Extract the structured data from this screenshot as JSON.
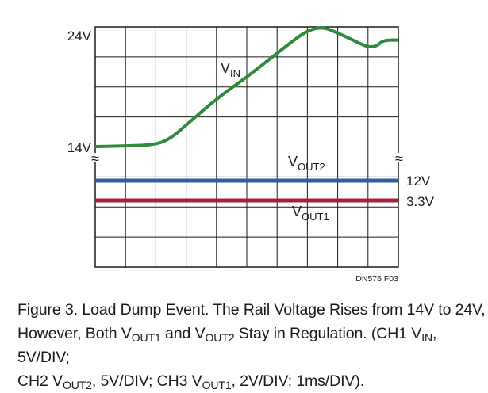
{
  "chart_data": {
    "type": "line",
    "title": "Load Dump Event",
    "x_axis": {
      "divisions": 10,
      "scale": "1ms/DIV",
      "range_ms": [
        0,
        10
      ]
    },
    "y_axis": {
      "divisions": 8
    },
    "channels": [
      {
        "channel": "CH1",
        "name_main": "V",
        "name_sub": "IN",
        "scale": "5V/DIV",
        "color": "#2e8b3a"
      },
      {
        "channel": "CH2",
        "name_main": "V",
        "name_sub": "OUT2",
        "scale": "5V/DIV",
        "color": "#2e5fa3"
      },
      {
        "channel": "CH3",
        "name_main": "V",
        "name_sub": "OUT1",
        "scale": "2V/DIV",
        "color": "#a8213a"
      }
    ],
    "vin_trace": {
      "label_main": "V",
      "label_sub": "IN",
      "start_label": "14V",
      "peak_label": "24V",
      "x_ms": [
        0.0,
        1.0,
        2.0,
        2.5,
        3.0,
        4.0,
        5.0,
        6.0,
        6.5,
        7.0,
        7.5,
        8.0,
        8.5,
        9.0,
        9.3,
        9.5,
        10.0
      ],
      "y_v": [
        14.0,
        14.05,
        14.15,
        14.7,
        15.8,
        18.0,
        19.8,
        21.8,
        22.8,
        23.7,
        24.0,
        23.5,
        22.9,
        22.3,
        22.4,
        22.9,
        22.9
      ]
    },
    "vout2_trace": {
      "label_main": "V",
      "label_sub": "OUT2",
      "level_label": "12V",
      "value_v": 12
    },
    "vout1_trace": {
      "label_main": "V",
      "label_sub": "OUT1",
      "level_label": "3.3V",
      "value_v": 3.3
    },
    "axis_break_symbol": "≈",
    "code": "DN576 F03"
  },
  "caption": {
    "line1": "Figure 3. Load Dump Event. The Rail Voltage Rises from 14V to 24V,",
    "line2_a": "However, Both ",
    "line2_v1": "V",
    "line2_v1_sub": "OUT1",
    "line2_b": " and ",
    "line2_v2": "V",
    "line2_v2_sub": "OUT2",
    "line2_c": " Stay in Regulation. (CH1 ",
    "line2_v3": "V",
    "line2_v3_sub": "IN",
    "line2_d": ", 5V/DIV;",
    "line3_a": "CH2 ",
    "line3_v": "V",
    "line3_v_sub": "OUT2",
    "line3_b": ", 5V/DIV; CH3 ",
    "line3_v2": "V",
    "line3_v2_sub": "OUT1",
    "line3_c": ", 2V/DIV; 1ms/DIV)."
  }
}
